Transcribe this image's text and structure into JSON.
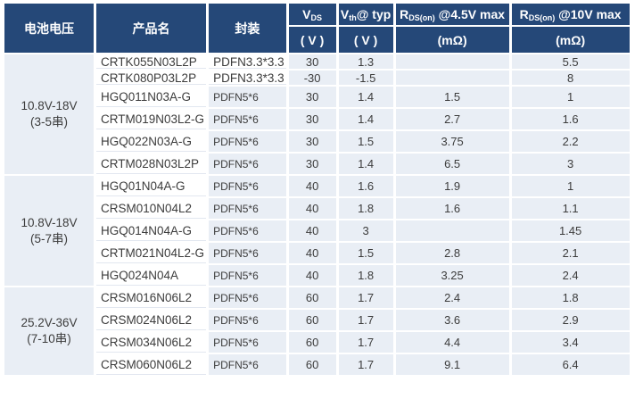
{
  "colors": {
    "header_bg": "#254878",
    "header_text": "#ffffff",
    "cell_bg": "#e9eef5",
    "cell_text": "#3c3c3c"
  },
  "table": {
    "header": {
      "battery": "电池电压",
      "product": "产品名",
      "package": "封装",
      "vds": {
        "base": "V",
        "sub": "DS",
        "rest": "",
        "unit": "( V )"
      },
      "vth": {
        "base": "V",
        "sub": "th",
        "rest": "@ typ",
        "unit": "( V )"
      },
      "rds45": {
        "base": "R",
        "sub": "DS(on)",
        "rest": " @4.5V max",
        "unit": "(mΩ)"
      },
      "rds10": {
        "base": "R",
        "sub": "DS(on)",
        "rest": " @10V max",
        "unit": "(mΩ)"
      }
    },
    "groups": [
      {
        "label_line1": "10.8V-18V",
        "label_line2": "(3-5串)",
        "rows": [
          [
            "CRTK055N03L2P",
            "PDFN3.3*3.3",
            "30",
            "1.3",
            "",
            "5.5"
          ],
          [
            "CRTK080P03L2P",
            "PDFN3.3*3.3",
            "-30",
            "-1.5",
            "",
            "8"
          ],
          [
            "HGQ011N03A-G",
            "PDFN5*6",
            "30",
            "1.4",
            "1.5",
            "1"
          ],
          [
            "CRTM019N03L2-G",
            "PDFN5*6",
            "30",
            "1.4",
            "2.7",
            "1.6"
          ],
          [
            "HGQ022N03A-G",
            "PDFN5*6",
            "30",
            "1.5",
            "3.75",
            "2.2"
          ],
          [
            "CRTM028N03L2P",
            "PDFN5*6",
            "30",
            "1.4",
            "6.5",
            "3"
          ]
        ]
      },
      {
        "label_line1": "10.8V-18V",
        "label_line2": "(5-7串)",
        "rows": [
          [
            "HGQ01N04A-G",
            "PDFN5*6",
            "40",
            "1.6",
            "1.9",
            "1"
          ],
          [
            "CRSM010N04L2",
            "PDFN5*6",
            "40",
            "1.8",
            "1.6",
            "1.1"
          ],
          [
            "HGQ014N04A-G",
            "PDFN5*6",
            "40",
            "3",
            "",
            "1.45"
          ],
          [
            "CRTM021N04L2-G",
            "PDFN5*6",
            "40",
            "1.5",
            "2.8",
            "2.1"
          ],
          [
            "HGQ024N04A",
            "PDFN5*6",
            "40",
            "1.8",
            "3.25",
            "2.4"
          ]
        ]
      },
      {
        "label_line1": "25.2V-36V",
        "label_line2": "(7-10串)",
        "rows": [
          [
            "CRSM016N06L2",
            "PDFN5*6",
            "60",
            "1.7",
            "2.4",
            "1.8"
          ],
          [
            "CRSM024N06L2",
            "PDFN5*6",
            "60",
            "1.7",
            "3.6",
            "2.9"
          ],
          [
            "CRSM034N06L2",
            "PDFN5*6",
            "60",
            "1.7",
            "4.4",
            "3.4"
          ],
          [
            "CRSM060N06L2",
            "PDFN5*6",
            "60",
            "1.7",
            "9.1",
            "6.4"
          ]
        ]
      }
    ]
  }
}
